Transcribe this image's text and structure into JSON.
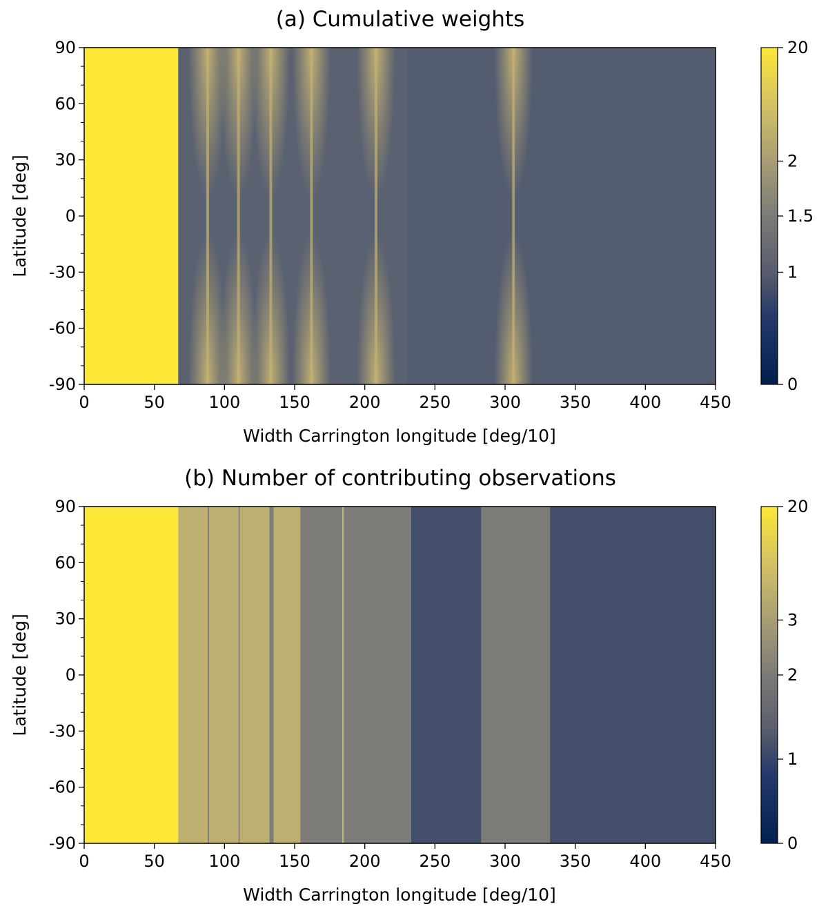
{
  "chart_data": [
    {
      "type": "heatmap",
      "title": "(a) Cumulative weights",
      "xlabel": "Width Carrington longitude [deg/10]",
      "ylabel": "Latitude [deg]",
      "xlim": [
        0,
        450
      ],
      "ylim": [
        -90,
        90
      ],
      "xticks": [
        "0",
        "50",
        "100",
        "150",
        "200",
        "250",
        "300",
        "350",
        "400",
        "450"
      ],
      "yticks": [
        "90",
        "60",
        "30",
        "0",
        "-30",
        "-60",
        "-90"
      ],
      "colorbar": {
        "scale": "nonlinear",
        "ticks": [
          {
            "label": "20",
            "value": 20
          },
          {
            "label": "2",
            "value": 2
          },
          {
            "label": "1.5",
            "value": 1.5
          },
          {
            "label": "1",
            "value": 1
          },
          {
            "label": "0",
            "value": 0
          }
        ]
      },
      "base_value": 1,
      "regions": [
        {
          "x0": 0,
          "x1": 67,
          "value": 20
        }
      ],
      "features": [
        {
          "center": 88,
          "kind": "hourglass"
        },
        {
          "center": 110,
          "kind": "hourglass"
        },
        {
          "center": 133,
          "kind": "hourglass"
        },
        {
          "center": 162,
          "kind": "hourglass"
        },
        {
          "center": 208,
          "kind": "hourglass"
        },
        {
          "center": 306,
          "kind": "hourglass"
        }
      ],
      "peak_value": 2
    },
    {
      "type": "heatmap",
      "title": "(b) Number of contributing observations",
      "xlabel": "Width Carrington longitude [deg/10]",
      "ylabel": "Latitude [deg]",
      "xlim": [
        0,
        450
      ],
      "ylim": [
        -90,
        90
      ],
      "xticks": [
        "0",
        "50",
        "100",
        "150",
        "200",
        "250",
        "300",
        "350",
        "400",
        "450"
      ],
      "yticks": [
        "90",
        "60",
        "30",
        "0",
        "-30",
        "-60",
        "-90"
      ],
      "colorbar": {
        "scale": "nonlinear",
        "ticks": [
          {
            "label": "20",
            "value": 20
          },
          {
            "label": "3",
            "value": 3
          },
          {
            "label": "2",
            "value": 2
          },
          {
            "label": "1",
            "value": 1
          },
          {
            "label": "0",
            "value": 0
          }
        ]
      },
      "bands": [
        {
          "x0": 0,
          "x1": 67,
          "value": 20
        },
        {
          "x0": 67,
          "x1": 88,
          "value": 3
        },
        {
          "x0": 88,
          "x1": 89,
          "value": 2
        },
        {
          "x0": 89,
          "x1": 110,
          "value": 3
        },
        {
          "x0": 110,
          "x1": 111,
          "value": 2
        },
        {
          "x0": 111,
          "x1": 132,
          "value": 3
        },
        {
          "x0": 132,
          "x1": 135,
          "value": 2
        },
        {
          "x0": 135,
          "x1": 154,
          "value": 3
        },
        {
          "x0": 154,
          "x1": 184,
          "value": 2
        },
        {
          "x0": 184,
          "x1": 185,
          "value": 3
        },
        {
          "x0": 185,
          "x1": 233,
          "value": 2
        },
        {
          "x0": 233,
          "x1": 283,
          "value": 1
        },
        {
          "x0": 283,
          "x1": 332,
          "value": 2
        },
        {
          "x0": 332,
          "x1": 450,
          "value": 1
        }
      ]
    }
  ],
  "colors": {
    "value_20": "#fde737",
    "value_3": "#bdaf6f",
    "value_2": "#7d7c78",
    "value_1_b": "#434e6b",
    "value_1_a": "#545c70",
    "weight_peak": "#c4b272",
    "colorbar_stops": [
      "#00204c",
      "#24386b",
      "#575c6d",
      "#7c7b78",
      "#a69d75",
      "#d3c164",
      "#fde737"
    ]
  }
}
